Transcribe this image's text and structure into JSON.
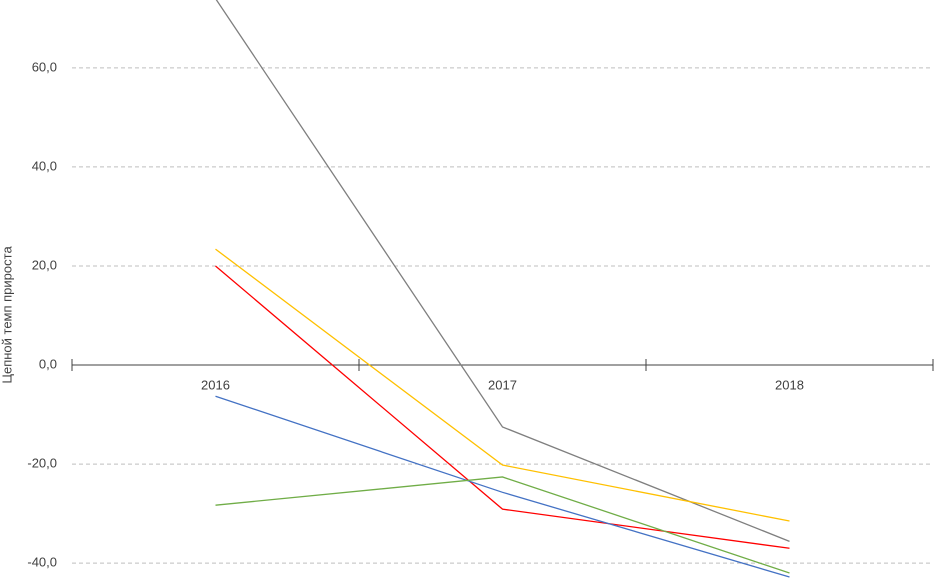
{
  "chart_data": {
    "type": "line",
    "y_label": "Цепной темп прироста",
    "categories": [
      "2016",
      "2017",
      "2018"
    ],
    "series": [
      {
        "color": "#7f7f7f",
        "values": [
          74.0,
          -12.5,
          -35.6
        ]
      },
      {
        "color": "#ffc000",
        "values": [
          23.4,
          -20.2,
          -31.5
        ]
      },
      {
        "color": "#ff0000",
        "values": [
          20.0,
          -29.1,
          -37.0
        ]
      },
      {
        "color": "#4472c4",
        "values": [
          -6.3,
          -25.7,
          -42.8
        ]
      },
      {
        "color": "#70ad47",
        "values": [
          -28.3,
          -22.6,
          -42.0
        ]
      }
    ],
    "ylim": [
      -43,
      73.7
    ],
    "yticks": [
      {
        "value": -40,
        "label": "-40,0"
      },
      {
        "value": -20,
        "label": "-20,0"
      },
      {
        "value": 0,
        "label": "0,0"
      },
      {
        "value": 20,
        "label": "20,0"
      },
      {
        "value": 40,
        "label": "40,0"
      },
      {
        "value": 60,
        "label": "60,0"
      }
    ],
    "grid": true
  }
}
